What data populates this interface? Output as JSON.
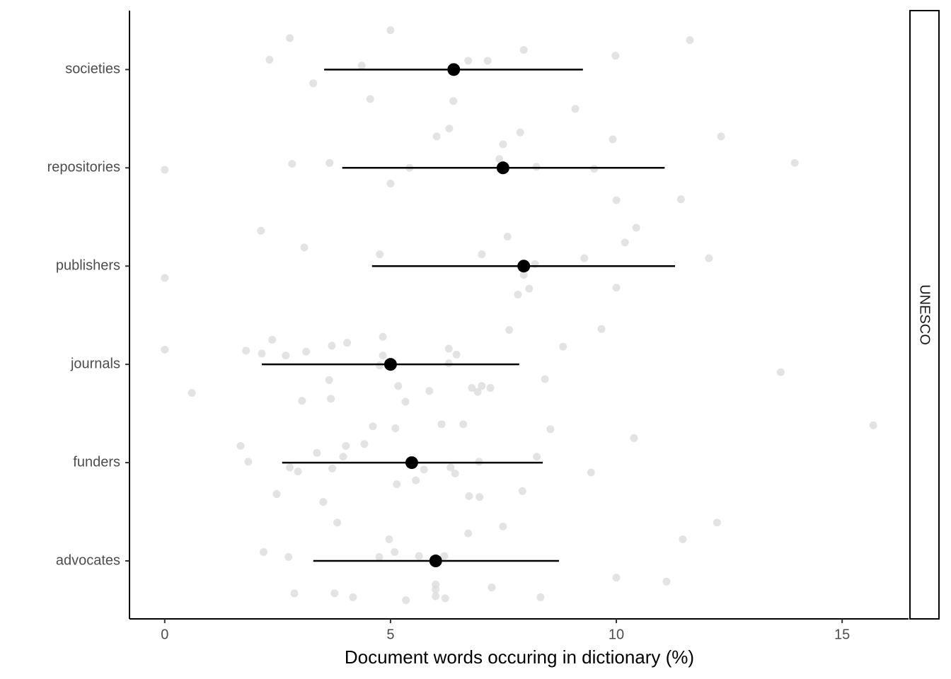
{
  "chart_data": {
    "type": "pointrange",
    "x_label": "Document words occuring in dictionary (%)",
    "strip_label": "UNESCO",
    "categories": [
      "advocates",
      "funders",
      "journals",
      "publishers",
      "repositories",
      "societies"
    ],
    "xlim": [
      -0.78,
      16.47
    ],
    "xticks": [
      0,
      5,
      10,
      15
    ],
    "ylim": [
      0.41,
      6.6
    ],
    "point_color": "#d9d9d9",
    "mean_color": "#000000",
    "means": [
      6.0,
      5.47,
      5.0,
      7.95,
      7.49,
      6.4
    ],
    "lower": [
      3.29,
      2.6,
      2.15,
      4.59,
      3.93,
      3.53
    ],
    "upper": [
      8.73,
      8.37,
      7.85,
      11.3,
      11.07,
      9.26
    ],
    "points": {
      "x": [
        2.77,
        5.0,
        11.63,
        7.95,
        2.32,
        4.36,
        6.72,
        7.15,
        9.98,
        3.29,
        4.55,
        6.39,
        9.09,
        6.3,
        7.87,
        6.02,
        9.92,
        12.32,
        7.49,
        0,
        2.82,
        3.65,
        5.42,
        7.41,
        8.23,
        9.51,
        13.95,
        5.0,
        11.43,
        10.0,
        2.13,
        10.44,
        7.59,
        10.19,
        3.09,
        4.76,
        7.02,
        9.29,
        12.05,
        8.2,
        7.95,
        0,
        8.07,
        10.0,
        7.82,
        7.63,
        9.67,
        2.38,
        4.83,
        0,
        1.8,
        2.15,
        2.68,
        3.13,
        3.7,
        4.04,
        4.83,
        4.76,
        6.29,
        6.46,
        6.29,
        8.82,
        13.64,
        3.64,
        5.17,
        5.86,
        6.8,
        7.02,
        7.21,
        6.93,
        8.42,
        0.6,
        3.04,
        3.68,
        5.33,
        4.61,
        5.11,
        6.13,
        6.61,
        8.54,
        15.69,
        10.39,
        1.68,
        4.01,
        4.42,
        3.37,
        3.95,
        1.85,
        2.77,
        2.95,
        3.71,
        5.74,
        6.33,
        6.43,
        6.96,
        8.24,
        9.44,
        5.14,
        5.56,
        7.92,
        2.48,
        3.51,
        6.74,
        6.97,
        3.82,
        7.49,
        12.23,
        6.72,
        4.97,
        11.47,
        2.19,
        2.74,
        4.75,
        5.09,
        5.63,
        6.19,
        10.0,
        11.11,
        6.0,
        6.0,
        7.24,
        2.87,
        3.76,
        4.17,
        5.34,
        6.0,
        6.21,
        8.32
      ],
      "y": [
        6.32,
        6.4,
        6.3,
        6.2,
        6.1,
        6.04,
        6.09,
        6.09,
        6.14,
        5.86,
        5.7,
        5.68,
        5.6,
        5.4,
        5.36,
        5.32,
        5.29,
        5.32,
        5.24,
        4.98,
        5.04,
        5.05,
        5.0,
        5.09,
        5.01,
        4.99,
        5.05,
        4.84,
        4.68,
        4.67,
        4.36,
        4.39,
        4.3,
        4.24,
        4.19,
        4.12,
        4.12,
        4.08,
        4.08,
        4.02,
        3.91,
        3.88,
        3.77,
        3.78,
        3.71,
        3.35,
        3.36,
        3.25,
        3.28,
        3.15,
        3.14,
        3.11,
        3.09,
        3.13,
        3.19,
        3.22,
        3.09,
        2.99,
        3.16,
        3.1,
        3.01,
        3.18,
        2.92,
        2.84,
        2.78,
        2.73,
        2.76,
        2.78,
        2.76,
        2.72,
        2.85,
        2.71,
        2.63,
        2.65,
        2.62,
        2.37,
        2.35,
        2.39,
        2.39,
        2.34,
        2.38,
        2.25,
        2.17,
        2.17,
        2.19,
        2.1,
        2.06,
        2.01,
        1.95,
        1.91,
        1.94,
        1.93,
        1.95,
        1.89,
        2.01,
        2.06,
        1.9,
        1.78,
        1.82,
        1.71,
        1.68,
        1.6,
        1.66,
        1.65,
        1.39,
        1.35,
        1.39,
        1.28,
        1.22,
        1.22,
        1.09,
        1.04,
        1.04,
        1.09,
        1.05,
        1.05,
        0.83,
        0.79,
        0.76,
        0.71,
        0.73,
        0.67,
        0.67,
        0.63,
        0.6,
        0.64,
        0.62,
        0.63
      ]
    }
  }
}
